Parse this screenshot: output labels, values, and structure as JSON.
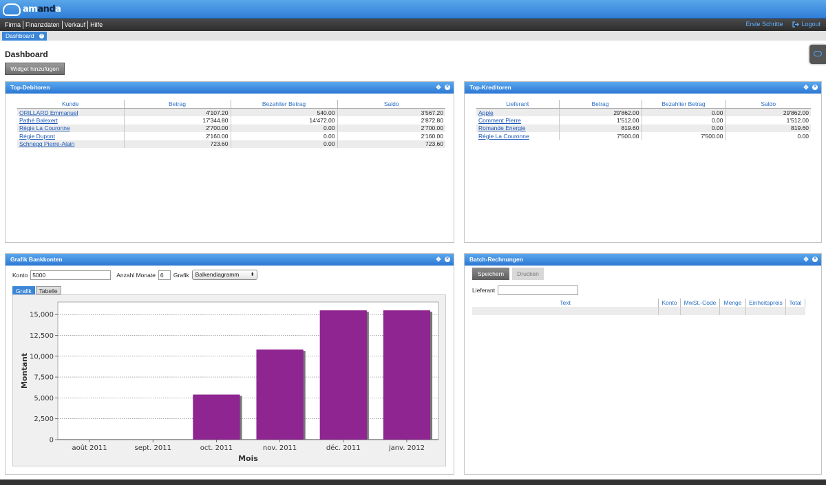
{
  "app": {
    "logo_text_a": "am",
    "logo_text_b": "and",
    "logo_text_c": "a"
  },
  "menu": {
    "items": [
      "Firma",
      "Finanzdaten",
      "Verkauf",
      "Hilfe"
    ],
    "first_steps": "Erste Schritte",
    "logout": "Logout"
  },
  "tab": {
    "label": "Dashboard"
  },
  "page": {
    "title": "Dashboard",
    "add_widget": "Widget hinzufügen"
  },
  "debitoren": {
    "title": "Top-Debitoren",
    "columns": [
      "Kunde",
      "Betrag",
      "Bezahlter Betrag",
      "Saldo"
    ],
    "rows": [
      [
        "ORILLARD Emmanuel",
        "4'107.20",
        "540.00",
        "3'567.20"
      ],
      [
        "Pathé Balexert",
        "17'344.80",
        "14'472.00",
        "2'872.80"
      ],
      [
        "Régie La Couronne",
        "2'700.00",
        "0.00",
        "2'700.00"
      ],
      [
        "Régie Dupont",
        "2'160.00",
        "0.00",
        "2'160.00"
      ],
      [
        "Schnegg Pierre-Alain",
        "723.60",
        "0.00",
        "723.60"
      ]
    ]
  },
  "kreditoren": {
    "title": "Top-Kreditoren",
    "columns": [
      "Lieferant",
      "Betrag",
      "Bezahlter Betrag",
      "Saldo"
    ],
    "rows": [
      [
        "Apple",
        "29'862.00",
        "0.00",
        "29'862.00"
      ],
      [
        "Comment Pierre",
        "1'512.00",
        "0.00",
        "1'512.00"
      ],
      [
        "Romande Energie",
        "819.60",
        "0.00",
        "819.60"
      ],
      [
        "Régie La Couronne",
        "7'500.00",
        "7'500.00",
        "0.00"
      ]
    ]
  },
  "bank": {
    "title": "Grafik Bankkonten",
    "konto_label": "Konto",
    "konto_value": "5000",
    "monate_label": "Anzahl Monate",
    "monate_value": "6",
    "grafik_label": "Grafik",
    "grafik_value": "Balkendiagramm",
    "tabs": [
      "Grafik",
      "Tabelle"
    ]
  },
  "batch": {
    "title": "Batch-Rechnungen",
    "save": "Speichern",
    "print": "Drucken",
    "lieferant_label": "Lieferant",
    "columns": [
      "Text",
      "Konto",
      "MwSt.-Code",
      "Menge",
      "Einheitspreis",
      "Total"
    ]
  },
  "colors": {
    "accent": "#3c86d8",
    "bar": "#8e2590"
  },
  "chart_data": {
    "type": "bar",
    "categories": [
      "août 2011",
      "sept. 2011",
      "oct. 2011",
      "nov. 2011",
      "déc. 2011",
      "janv. 2012"
    ],
    "values": [
      0,
      0,
      5400,
      10800,
      15500,
      15500
    ],
    "xlabel": "Mois",
    "ylabel": "Montant",
    "ylim": [
      0,
      16500
    ],
    "yticks": [
      0,
      2500,
      5000,
      7500,
      10000,
      12500,
      15000
    ],
    "ytick_labels": [
      "0",
      "2,500",
      "5,000",
      "7,500",
      "10,000",
      "12,500",
      "15,000"
    ],
    "grid": true
  }
}
